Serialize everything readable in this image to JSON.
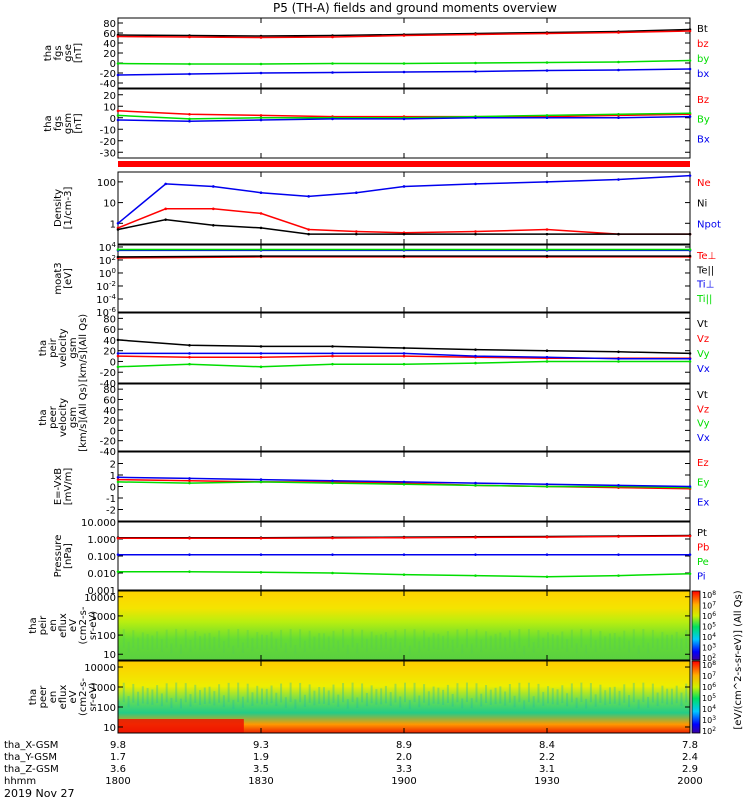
{
  "title": "P5 (TH-A) fields and ground moments overview",
  "date_label": "2019 Nov 27",
  "xaxis": {
    "row_labels": [
      "tha_X-GSM",
      "tha_Y-GSM",
      "tha_Z-GSM",
      "hhmm"
    ],
    "ticks": [
      {
        "x": "9.8",
        "y": "1.7",
        "z": "3.6",
        "t": "1800"
      },
      {
        "x": "9.3",
        "y": "1.9",
        "z": "3.5",
        "t": "1830"
      },
      {
        "x": "8.9",
        "y": "2.0",
        "z": "3.3",
        "t": "1900"
      },
      {
        "x": "8.4",
        "y": "2.2",
        "z": "3.1",
        "t": "1930"
      },
      {
        "x": "7.8",
        "y": "2.4",
        "z": "2.9",
        "t": "2000"
      }
    ]
  },
  "colorbar": {
    "label": "[eV/(cm^2-s-sr-eV)] (All Qs)",
    "top": {
      "ticks": [
        "10^8",
        "10^7",
        "10^6",
        "10^5",
        "10^4",
        "10^3",
        "10^2"
      ]
    },
    "bottom": {
      "ticks": [
        "10^8",
        "10^7",
        "10^6",
        "10^5",
        "10^4",
        "10^3",
        "10^2"
      ]
    }
  },
  "chart_data": [
    {
      "type": "line",
      "ylabel": [
        "tha",
        "fgs",
        "gse",
        "[nT]"
      ],
      "ylim": [
        -50,
        90
      ],
      "yticks": [
        "80",
        "60",
        "40",
        "20",
        "0",
        "-20",
        "-40"
      ],
      "series": [
        {
          "name": "Bt",
          "color": "#000000",
          "x": [
            1800,
            1815,
            1830,
            1845,
            1900,
            1915,
            1930,
            1945,
            2000
          ],
          "y": [
            56,
            55,
            54,
            55,
            57,
            59,
            61,
            63,
            67
          ]
        },
        {
          "name": "bz",
          "color": "#ff0000",
          "x": [
            1800,
            1815,
            1830,
            1845,
            1900,
            1915,
            1930,
            1945,
            2000
          ],
          "y": [
            53,
            52,
            51,
            52,
            55,
            57,
            59,
            61,
            64
          ]
        },
        {
          "name": "by",
          "color": "#00dd00",
          "x": [
            1800,
            1815,
            1830,
            1845,
            1900,
            1915,
            1930,
            1945,
            2000
          ],
          "y": [
            -1,
            -2,
            -2,
            -1,
            -1,
            0,
            1,
            2,
            5
          ]
        },
        {
          "name": "bx",
          "color": "#0000ee",
          "x": [
            1800,
            1815,
            1830,
            1845,
            1900,
            1915,
            1930,
            1945,
            2000
          ],
          "y": [
            -24,
            -22,
            -20,
            -19,
            -18,
            -17,
            -15,
            -14,
            -12
          ]
        }
      ]
    },
    {
      "type": "line",
      "ylabel": [
        "tha",
        "fgs",
        "gsm",
        "[nT]"
      ],
      "ylim": [
        -35,
        25
      ],
      "yticks": [
        "20",
        "10",
        "0",
        "-10",
        "-20",
        "-30"
      ],
      "series": [
        {
          "name": "Bz",
          "color": "#ff0000",
          "x": [
            1800,
            1815,
            1830,
            1845,
            1900,
            1915,
            1930,
            1945,
            2000
          ],
          "y": [
            6,
            3,
            2,
            1,
            1,
            1,
            1,
            2,
            3
          ]
        },
        {
          "name": "By",
          "color": "#00dd00",
          "x": [
            1800,
            1815,
            1830,
            1845,
            1900,
            1915,
            1930,
            1945,
            2000
          ],
          "y": [
            2,
            -1,
            0,
            0,
            0,
            1,
            2,
            3,
            4
          ]
        },
        {
          "name": "Bx",
          "color": "#0000ee",
          "x": [
            1800,
            1815,
            1830,
            1845,
            1900,
            1915,
            1930,
            1945,
            2000
          ],
          "y": [
            -2,
            -3,
            -2,
            -1,
            -1,
            0,
            0,
            0,
            1
          ]
        }
      ]
    },
    {
      "type": "line",
      "ylabel": [
        "Density",
        "[1/cm-3]"
      ],
      "ylim": [
        0.1,
        300
      ],
      "log": true,
      "yticks": [
        "100",
        "10",
        "1"
      ],
      "series": [
        {
          "name": "Ne",
          "color": "#ff0000",
          "x": [
            1800,
            1810,
            1820,
            1830,
            1840,
            1850,
            1900,
            1915,
            1930,
            1945,
            2000
          ],
          "y": [
            0.6,
            5,
            5,
            3,
            0.5,
            0.4,
            0.35,
            0.4,
            0.5,
            0.3,
            0.3
          ]
        },
        {
          "name": "Ni",
          "color": "#000000",
          "x": [
            1800,
            1810,
            1820,
            1830,
            1840,
            1850,
            1900,
            1915,
            1930,
            1945,
            2000
          ],
          "y": [
            0.5,
            1.5,
            0.8,
            0.6,
            0.3,
            0.3,
            0.3,
            0.3,
            0.3,
            0.3,
            0.3
          ]
        },
        {
          "name": "Npot",
          "color": "#0000ee",
          "x": [
            1800,
            1810,
            1820,
            1830,
            1840,
            1850,
            1900,
            1915,
            1930,
            1945,
            2000
          ],
          "y": [
            1,
            80,
            60,
            30,
            20,
            30,
            60,
            80,
            100,
            130,
            200
          ]
        }
      ]
    },
    {
      "type": "line",
      "ylabel": [
        "moat3",
        "[eV]"
      ],
      "ylim": [
        1e-06,
        20000
      ],
      "log": true,
      "yticks": [
        "10^4",
        "10^2",
        "10^0",
        "10^-2",
        "10^-4",
        "10^-6"
      ],
      "series": [
        {
          "name": "Te⊥",
          "color": "#ff0000",
          "x": [
            1800,
            1830,
            1900,
            1930,
            2000
          ],
          "y": [
            200,
            300,
            300,
            300,
            300
          ]
        },
        {
          "name": "Te||",
          "color": "#000000",
          "x": [
            1800,
            1830,
            1900,
            1930,
            2000
          ],
          "y": [
            300,
            400,
            400,
            400,
            400
          ]
        },
        {
          "name": "Ti⊥",
          "color": "#0000ee",
          "x": [
            1800,
            1830,
            1900,
            1930,
            2000
          ],
          "y": [
            3000,
            3000,
            3000,
            3000,
            3000
          ]
        },
        {
          "name": "Ti||",
          "color": "#00dd00",
          "x": [
            1800,
            1830,
            1900,
            1930,
            2000
          ],
          "y": [
            4000,
            4000,
            4000,
            4000,
            4000
          ]
        }
      ]
    },
    {
      "type": "line",
      "ylabel": [
        "tha",
        "peir",
        "velocity",
        "gsm",
        "[km/s](All Qs)"
      ],
      "ylim": [
        -40,
        90
      ],
      "yticks": [
        "80",
        "60",
        "40",
        "20",
        "0",
        "-20",
        "-40"
      ],
      "series": [
        {
          "name": "Vt",
          "color": "#000000",
          "x": [
            1800,
            1815,
            1830,
            1845,
            1900,
            1915,
            1930,
            1945,
            2000
          ],
          "y": [
            40,
            30,
            28,
            28,
            25,
            22,
            20,
            18,
            15
          ]
        },
        {
          "name": "Vz",
          "color": "#ff0000",
          "x": [
            1800,
            1815,
            1830,
            1845,
            1900,
            1915,
            1930,
            1945,
            2000
          ],
          "y": [
            10,
            8,
            8,
            10,
            10,
            8,
            6,
            6,
            6
          ]
        },
        {
          "name": "Vy",
          "color": "#00dd00",
          "x": [
            1800,
            1815,
            1830,
            1845,
            1900,
            1915,
            1930,
            1945,
            2000
          ],
          "y": [
            -10,
            -5,
            -10,
            -5,
            -5,
            -3,
            0,
            0,
            0
          ]
        },
        {
          "name": "Vx",
          "color": "#0000ee",
          "x": [
            1800,
            1815,
            1830,
            1845,
            1900,
            1915,
            1930,
            1945,
            2000
          ],
          "y": [
            15,
            15,
            15,
            15,
            15,
            10,
            8,
            5,
            5
          ]
        }
      ]
    },
    {
      "type": "line",
      "ylabel": [
        "tha",
        "peer",
        "velocity",
        "gsm",
        "[km/s](All Qs)"
      ],
      "ylim": [
        -40,
        90
      ],
      "yticks": [
        "80",
        "60",
        "40",
        "20",
        "0",
        "-20",
        "-40"
      ],
      "series": [
        {
          "name": "Vt",
          "color": "#000000",
          "x": [],
          "y": []
        },
        {
          "name": "Vz",
          "color": "#ff0000",
          "x": [],
          "y": []
        },
        {
          "name": "Vy",
          "color": "#00dd00",
          "x": [],
          "y": []
        },
        {
          "name": "Vx",
          "color": "#0000ee",
          "x": [],
          "y": []
        }
      ]
    },
    {
      "type": "line",
      "ylabel": [
        "E=-VxB",
        "[mV/m]"
      ],
      "ylim": [
        -3,
        3
      ],
      "yticks": [
        "2",
        "1",
        "0",
        "-1",
        "-2"
      ],
      "series": [
        {
          "name": "Ez",
          "color": "#ff0000",
          "x": [
            1800,
            1815,
            1830,
            1845,
            1900,
            1915,
            1930,
            1945,
            2000
          ],
          "y": [
            0.6,
            0.5,
            0.4,
            0.4,
            0.3,
            0.1,
            0,
            -0.1,
            -0.2
          ]
        },
        {
          "name": "Ey",
          "color": "#00dd00",
          "x": [
            1800,
            1815,
            1830,
            1845,
            1900,
            1915,
            1930,
            1945,
            2000
          ],
          "y": [
            0.4,
            0.3,
            0.4,
            0.3,
            0.2,
            0.1,
            0,
            0,
            -0.1
          ]
        },
        {
          "name": "Ex",
          "color": "#0000ee",
          "x": [
            1800,
            1815,
            1830,
            1845,
            1900,
            1915,
            1930,
            1945,
            2000
          ],
          "y": [
            0.8,
            0.7,
            0.6,
            0.5,
            0.4,
            0.3,
            0.2,
            0.1,
            0
          ]
        }
      ]
    },
    {
      "type": "line",
      "ylabel": [
        "Pressure",
        "[nPa]"
      ],
      "ylim": [
        0.001,
        10
      ],
      "log": true,
      "yticks": [
        "10.000",
        "1.000",
        "0.100",
        "0.010",
        "0.001"
      ],
      "series": [
        {
          "name": "Pt",
          "color": "#000000",
          "x": [
            1800,
            1815,
            1830,
            1845,
            1900,
            1915,
            1930,
            1945,
            2000
          ],
          "y": [
            1.2,
            1.2,
            1.2,
            1.25,
            1.3,
            1.35,
            1.4,
            1.5,
            1.6
          ]
        },
        {
          "name": "Pb",
          "color": "#ff0000",
          "x": [
            1800,
            1815,
            1830,
            1845,
            1900,
            1915,
            1930,
            1945,
            2000
          ],
          "y": [
            1.1,
            1.1,
            1.1,
            1.15,
            1.2,
            1.25,
            1.3,
            1.4,
            1.5
          ]
        },
        {
          "name": "Pe",
          "color": "#00dd00",
          "x": [
            1800,
            1815,
            1830,
            1845,
            1900,
            1915,
            1930,
            1945,
            2000
          ],
          "y": [
            0.012,
            0.012,
            0.011,
            0.01,
            0.008,
            0.007,
            0.006,
            0.007,
            0.009
          ]
        },
        {
          "name": "Pi",
          "color": "#0000ee",
          "x": [
            1800,
            1815,
            1830,
            1845,
            1900,
            1915,
            1930,
            1945,
            2000
          ],
          "y": [
            0.12,
            0.12,
            0.12,
            0.12,
            0.12,
            0.12,
            0.12,
            0.12,
            0.12
          ]
        }
      ]
    },
    {
      "type": "heatmap",
      "ylabel": [
        "tha",
        "peir",
        "en",
        "eflux",
        "eV",
        "(cm2-s-",
        "sr-eV)"
      ],
      "ylim": [
        5,
        20000
      ],
      "log": true,
      "yticks": [
        "10000",
        "1000",
        "100",
        "10"
      ]
    },
    {
      "type": "heatmap",
      "ylabel": [
        "tha",
        "peer",
        "en",
        "eflux",
        "eV",
        "(cm2-s-",
        "sr-eV)"
      ],
      "ylim": [
        5,
        20000
      ],
      "log": true,
      "yticks": [
        "10000",
        "1000",
        "100",
        "10"
      ]
    }
  ]
}
